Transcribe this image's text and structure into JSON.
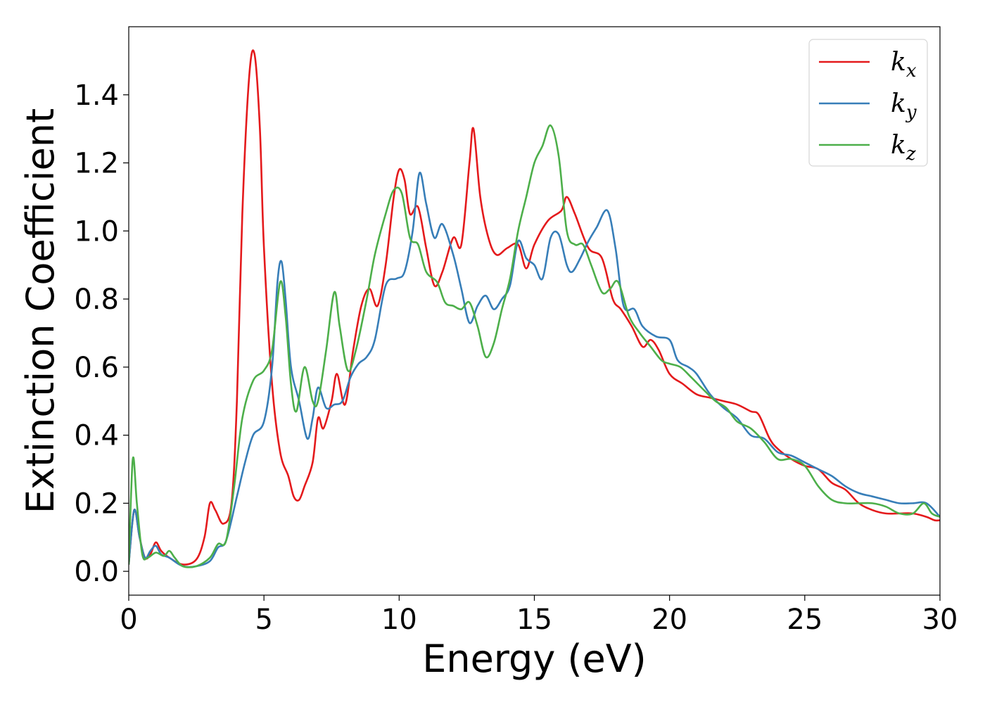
{
  "chart_data": {
    "type": "line",
    "title": "",
    "xlabel": "Energy (eV)",
    "ylabel": "Extinction Coefficient",
    "xlim": [
      0,
      30
    ],
    "ylim": [
      -0.07,
      1.6
    ],
    "xticks": [
      0,
      5,
      10,
      15,
      20,
      25,
      30
    ],
    "xtick_labels": [
      "0",
      "5",
      "10",
      "15",
      "20",
      "25",
      "30"
    ],
    "yticks": [
      0.0,
      0.2,
      0.4,
      0.6,
      0.8,
      1.0,
      1.2,
      1.4
    ],
    "ytick_labels": [
      "0.0",
      "0.2",
      "0.4",
      "0.6",
      "0.8",
      "1.0",
      "1.2",
      "1.4"
    ],
    "grid": false,
    "legend_position": "top-right",
    "series": [
      {
        "name": "k_x",
        "label_base": "k",
        "label_sub": "x",
        "color": "#e41a1c",
        "points": [
          [
            0,
            0.02
          ],
          [
            0.2,
            0.18
          ],
          [
            0.4,
            0.1
          ],
          [
            0.6,
            0.04
          ],
          [
            0.8,
            0.05
          ],
          [
            1.0,
            0.085
          ],
          [
            1.2,
            0.06
          ],
          [
            1.5,
            0.04
          ],
          [
            2.0,
            0.02
          ],
          [
            2.5,
            0.035
          ],
          [
            2.8,
            0.1
          ],
          [
            3.0,
            0.2
          ],
          [
            3.2,
            0.18
          ],
          [
            3.5,
            0.14
          ],
          [
            3.8,
            0.2
          ],
          [
            4.0,
            0.5
          ],
          [
            4.2,
            1.05
          ],
          [
            4.45,
            1.45
          ],
          [
            4.65,
            1.52
          ],
          [
            4.85,
            1.3
          ],
          [
            5.0,
            0.95
          ],
          [
            5.3,
            0.55
          ],
          [
            5.6,
            0.35
          ],
          [
            5.9,
            0.28
          ],
          [
            6.1,
            0.22
          ],
          [
            6.3,
            0.21
          ],
          [
            6.5,
            0.25
          ],
          [
            6.8,
            0.32
          ],
          [
            7.0,
            0.45
          ],
          [
            7.2,
            0.42
          ],
          [
            7.5,
            0.5
          ],
          [
            7.7,
            0.58
          ],
          [
            8.0,
            0.49
          ],
          [
            8.3,
            0.65
          ],
          [
            8.6,
            0.78
          ],
          [
            8.9,
            0.83
          ],
          [
            9.2,
            0.78
          ],
          [
            9.5,
            0.9
          ],
          [
            9.8,
            1.1
          ],
          [
            10.0,
            1.18
          ],
          [
            10.2,
            1.15
          ],
          [
            10.4,
            1.05
          ],
          [
            10.7,
            1.07
          ],
          [
            11.0,
            0.95
          ],
          [
            11.3,
            0.84
          ],
          [
            11.6,
            0.88
          ],
          [
            12.0,
            0.98
          ],
          [
            12.3,
            0.96
          ],
          [
            12.6,
            1.2
          ],
          [
            12.75,
            1.3
          ],
          [
            13.0,
            1.1
          ],
          [
            13.3,
            0.98
          ],
          [
            13.6,
            0.93
          ],
          [
            14.0,
            0.95
          ],
          [
            14.4,
            0.96
          ],
          [
            14.7,
            0.89
          ],
          [
            15.0,
            0.96
          ],
          [
            15.5,
            1.03
          ],
          [
            16.0,
            1.06
          ],
          [
            16.2,
            1.1
          ],
          [
            16.5,
            1.05
          ],
          [
            17.0,
            0.95
          ],
          [
            17.5,
            0.92
          ],
          [
            17.9,
            0.8
          ],
          [
            18.2,
            0.77
          ],
          [
            18.6,
            0.72
          ],
          [
            19.0,
            0.66
          ],
          [
            19.3,
            0.68
          ],
          [
            19.6,
            0.65
          ],
          [
            20.0,
            0.58
          ],
          [
            20.5,
            0.55
          ],
          [
            21.0,
            0.52
          ],
          [
            21.5,
            0.51
          ],
          [
            22.0,
            0.5
          ],
          [
            22.5,
            0.49
          ],
          [
            23.0,
            0.47
          ],
          [
            23.3,
            0.46
          ],
          [
            23.7,
            0.39
          ],
          [
            24.0,
            0.36
          ],
          [
            24.5,
            0.33
          ],
          [
            25.0,
            0.31
          ],
          [
            25.5,
            0.3
          ],
          [
            26.0,
            0.26
          ],
          [
            26.5,
            0.24
          ],
          [
            27.0,
            0.2
          ],
          [
            27.5,
            0.18
          ],
          [
            28.0,
            0.17
          ],
          [
            28.5,
            0.17
          ],
          [
            29.0,
            0.17
          ],
          [
            29.5,
            0.16
          ],
          [
            29.8,
            0.15
          ],
          [
            30,
            0.15
          ]
        ]
      },
      {
        "name": "k_y",
        "label_base": "k",
        "label_sub": "y",
        "color": "#377eb8",
        "points": [
          [
            0,
            0.02
          ],
          [
            0.2,
            0.18
          ],
          [
            0.4,
            0.1
          ],
          [
            0.6,
            0.04
          ],
          [
            0.8,
            0.06
          ],
          [
            1.0,
            0.075
          ],
          [
            1.2,
            0.05
          ],
          [
            1.5,
            0.04
          ],
          [
            2.0,
            0.015
          ],
          [
            2.5,
            0.015
          ],
          [
            3.0,
            0.03
          ],
          [
            3.3,
            0.07
          ],
          [
            3.6,
            0.09
          ],
          [
            4.0,
            0.22
          ],
          [
            4.3,
            0.32
          ],
          [
            4.6,
            0.4
          ],
          [
            5.0,
            0.44
          ],
          [
            5.3,
            0.6
          ],
          [
            5.5,
            0.85
          ],
          [
            5.65,
            0.91
          ],
          [
            5.8,
            0.8
          ],
          [
            6.0,
            0.6
          ],
          [
            6.3,
            0.5
          ],
          [
            6.6,
            0.39
          ],
          [
            6.8,
            0.45
          ],
          [
            7.0,
            0.54
          ],
          [
            7.3,
            0.48
          ],
          [
            7.6,
            0.49
          ],
          [
            7.9,
            0.5
          ],
          [
            8.2,
            0.57
          ],
          [
            8.5,
            0.61
          ],
          [
            8.8,
            0.63
          ],
          [
            9.1,
            0.68
          ],
          [
            9.5,
            0.84
          ],
          [
            9.9,
            0.86
          ],
          [
            10.2,
            0.88
          ],
          [
            10.5,
            1.0
          ],
          [
            10.75,
            1.17
          ],
          [
            11.0,
            1.08
          ],
          [
            11.3,
            0.98
          ],
          [
            11.6,
            1.02
          ],
          [
            12.0,
            0.93
          ],
          [
            12.3,
            0.83
          ],
          [
            12.6,
            0.73
          ],
          [
            12.9,
            0.78
          ],
          [
            13.2,
            0.81
          ],
          [
            13.5,
            0.77
          ],
          [
            13.8,
            0.8
          ],
          [
            14.1,
            0.84
          ],
          [
            14.4,
            0.97
          ],
          [
            14.7,
            0.92
          ],
          [
            15.0,
            0.9
          ],
          [
            15.3,
            0.86
          ],
          [
            15.6,
            0.98
          ],
          [
            15.9,
            0.99
          ],
          [
            16.2,
            0.9
          ],
          [
            16.4,
            0.88
          ],
          [
            16.7,
            0.92
          ],
          [
            17.0,
            0.97
          ],
          [
            17.3,
            1.01
          ],
          [
            17.7,
            1.06
          ],
          [
            18.0,
            0.95
          ],
          [
            18.3,
            0.78
          ],
          [
            18.7,
            0.77
          ],
          [
            19.0,
            0.72
          ],
          [
            19.5,
            0.69
          ],
          [
            20.0,
            0.68
          ],
          [
            20.3,
            0.62
          ],
          [
            20.7,
            0.6
          ],
          [
            21.0,
            0.58
          ],
          [
            21.5,
            0.52
          ],
          [
            22.0,
            0.48
          ],
          [
            22.5,
            0.45
          ],
          [
            23.0,
            0.4
          ],
          [
            23.5,
            0.39
          ],
          [
            24.0,
            0.35
          ],
          [
            24.5,
            0.34
          ],
          [
            25.0,
            0.32
          ],
          [
            25.5,
            0.3
          ],
          [
            26.0,
            0.28
          ],
          [
            26.5,
            0.25
          ],
          [
            27.0,
            0.23
          ],
          [
            27.5,
            0.22
          ],
          [
            28.0,
            0.21
          ],
          [
            28.5,
            0.2
          ],
          [
            29.0,
            0.2
          ],
          [
            29.5,
            0.2
          ],
          [
            30,
            0.16
          ]
        ]
      },
      {
        "name": "k_z",
        "label_base": "k",
        "label_sub": "z",
        "color": "#4daf4a",
        "points": [
          [
            0,
            0.02
          ],
          [
            0.15,
            0.33
          ],
          [
            0.3,
            0.2
          ],
          [
            0.5,
            0.05
          ],
          [
            0.7,
            0.04
          ],
          [
            1.0,
            0.055
          ],
          [
            1.3,
            0.045
          ],
          [
            1.5,
            0.06
          ],
          [
            1.7,
            0.04
          ],
          [
            2.0,
            0.015
          ],
          [
            2.5,
            0.015
          ],
          [
            3.0,
            0.04
          ],
          [
            3.3,
            0.08
          ],
          [
            3.6,
            0.09
          ],
          [
            3.9,
            0.25
          ],
          [
            4.2,
            0.45
          ],
          [
            4.6,
            0.56
          ],
          [
            5.0,
            0.59
          ],
          [
            5.3,
            0.65
          ],
          [
            5.6,
            0.85
          ],
          [
            5.8,
            0.75
          ],
          [
            6.0,
            0.55
          ],
          [
            6.2,
            0.47
          ],
          [
            6.5,
            0.6
          ],
          [
            6.8,
            0.5
          ],
          [
            7.0,
            0.5
          ],
          [
            7.3,
            0.65
          ],
          [
            7.6,
            0.82
          ],
          [
            7.8,
            0.72
          ],
          [
            8.1,
            0.59
          ],
          [
            8.4,
            0.65
          ],
          [
            8.8,
            0.8
          ],
          [
            9.1,
            0.93
          ],
          [
            9.5,
            1.05
          ],
          [
            9.8,
            1.12
          ],
          [
            10.1,
            1.11
          ],
          [
            10.4,
            0.98
          ],
          [
            10.7,
            0.96
          ],
          [
            11.0,
            0.88
          ],
          [
            11.4,
            0.85
          ],
          [
            11.7,
            0.79
          ],
          [
            12.0,
            0.78
          ],
          [
            12.3,
            0.77
          ],
          [
            12.6,
            0.79
          ],
          [
            12.9,
            0.72
          ],
          [
            13.2,
            0.63
          ],
          [
            13.5,
            0.67
          ],
          [
            13.8,
            0.77
          ],
          [
            14.1,
            0.86
          ],
          [
            14.4,
            1.0
          ],
          [
            14.7,
            1.1
          ],
          [
            15.0,
            1.2
          ],
          [
            15.3,
            1.25
          ],
          [
            15.6,
            1.31
          ],
          [
            15.9,
            1.22
          ],
          [
            16.2,
            1.0
          ],
          [
            16.5,
            0.96
          ],
          [
            16.8,
            0.96
          ],
          [
            17.1,
            0.9
          ],
          [
            17.5,
            0.82
          ],
          [
            17.8,
            0.83
          ],
          [
            18.1,
            0.85
          ],
          [
            18.5,
            0.75
          ],
          [
            18.9,
            0.7
          ],
          [
            19.3,
            0.66
          ],
          [
            19.7,
            0.62
          ],
          [
            20.0,
            0.61
          ],
          [
            20.4,
            0.6
          ],
          [
            20.8,
            0.57
          ],
          [
            21.3,
            0.53
          ],
          [
            21.7,
            0.5
          ],
          [
            22.1,
            0.48
          ],
          [
            22.5,
            0.44
          ],
          [
            23.0,
            0.42
          ],
          [
            23.5,
            0.38
          ],
          [
            24.0,
            0.33
          ],
          [
            24.5,
            0.33
          ],
          [
            25.0,
            0.31
          ],
          [
            25.5,
            0.25
          ],
          [
            26.0,
            0.21
          ],
          [
            26.5,
            0.2
          ],
          [
            27.0,
            0.2
          ],
          [
            27.5,
            0.2
          ],
          [
            28.0,
            0.19
          ],
          [
            28.5,
            0.17
          ],
          [
            29.0,
            0.17
          ],
          [
            29.4,
            0.2
          ],
          [
            29.7,
            0.17
          ],
          [
            30,
            0.16
          ]
        ]
      }
    ]
  }
}
